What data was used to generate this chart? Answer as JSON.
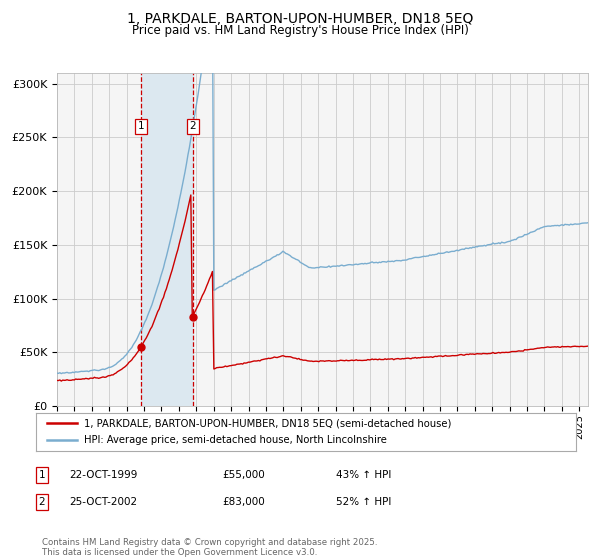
{
  "title": "1, PARKDALE, BARTON-UPON-HUMBER, DN18 5EQ",
  "subtitle": "Price paid vs. HM Land Registry's House Price Index (HPI)",
  "ylim": [
    0,
    310000
  ],
  "yticks": [
    0,
    50000,
    100000,
    150000,
    200000,
    250000,
    300000
  ],
  "ytick_labels": [
    "£0",
    "£50K",
    "£100K",
    "£150K",
    "£200K",
    "£250K",
    "£300K"
  ],
  "background_color": "#ffffff",
  "plot_bg_color": "#f5f5f5",
  "grid_color": "#cccccc",
  "sale1_date_x": 1999.81,
  "sale1_price": 55000,
  "sale1_label": "1",
  "sale2_date_x": 2002.81,
  "sale2_price": 83000,
  "sale2_label": "2",
  "legend_line1": "1, PARKDALE, BARTON-UPON-HUMBER, DN18 5EQ (semi-detached house)",
  "legend_line2": "HPI: Average price, semi-detached house, North Lincolnshire",
  "table_rows": [
    [
      "1",
      "22-OCT-1999",
      "£55,000",
      "43% ↑ HPI"
    ],
    [
      "2",
      "25-OCT-2002",
      "£83,000",
      "52% ↑ HPI"
    ]
  ],
  "footer": "Contains HM Land Registry data © Crown copyright and database right 2025.\nThis data is licensed under the Open Government Licence v3.0.",
  "line_color_red": "#cc0000",
  "line_color_blue": "#7aadcf",
  "shade_color": "#dce8f0",
  "xlim_start": 1995.0,
  "xlim_end": 2025.5
}
